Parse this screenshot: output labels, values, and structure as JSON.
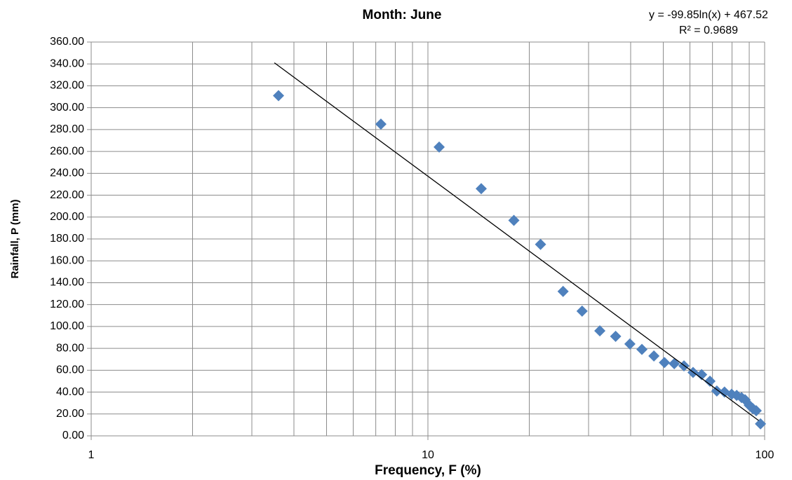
{
  "chart_data": {
    "type": "scatter",
    "title": "Month: June",
    "annotations": [
      "y = -99.85ln(x) + 467.52",
      "R² = 0.9689"
    ],
    "xlabel": "Frequency, F (%)",
    "ylabel": "Rainfall, P (mm)",
    "xscale": "log",
    "xlim": [
      1,
      100
    ],
    "xticks": [
      1,
      10,
      100
    ],
    "xminorticks": [
      2,
      3,
      4,
      5,
      6,
      7,
      8,
      9,
      20,
      30,
      40,
      50,
      60,
      70,
      80,
      90
    ],
    "ylim": [
      0,
      360
    ],
    "yticks": [
      {
        "value": 0,
        "label": "0.00"
      },
      {
        "value": 20,
        "label": "20.00"
      },
      {
        "value": 40,
        "label": "40.00"
      },
      {
        "value": 60,
        "label": "60.00"
      },
      {
        "value": 80,
        "label": "80.00"
      },
      {
        "value": 100,
        "label": "100.00"
      },
      {
        "value": 120,
        "label": "120.00"
      },
      {
        "value": 140,
        "label": "140.00"
      },
      {
        "value": 160,
        "label": "160.00"
      },
      {
        "value": 180,
        "label": "180.00"
      },
      {
        "value": 200,
        "label": "200.00"
      },
      {
        "value": 220,
        "label": "220.00"
      },
      {
        "value": 240,
        "label": "240.00"
      },
      {
        "value": 260,
        "label": "260.00"
      },
      {
        "value": 280,
        "label": "280.00"
      },
      {
        "value": 300,
        "label": "300.00"
      },
      {
        "value": 320,
        "label": "320.00"
      },
      {
        "value": 340,
        "label": "340.00"
      },
      {
        "value": 360,
        "label": "360.00"
      }
    ],
    "grid": true,
    "color": "#4f81bd",
    "x": [
      3.6,
      7.25,
      10.8,
      14.4,
      18.0,
      21.6,
      25.2,
      28.7,
      32.4,
      36.1,
      39.8,
      43.2,
      46.9,
      50.4,
      53.9,
      57.6,
      61.3,
      65,
      68.8,
      72.1,
      76,
      79.8,
      82.6,
      85.4,
      87.5,
      90,
      92.2,
      94.4,
      97.2
    ],
    "values": [
      311,
      285,
      264,
      226,
      197,
      175,
      132,
      114,
      96,
      91,
      84,
      79,
      73,
      67,
      66,
      64,
      58,
      56,
      50,
      41,
      40,
      38,
      37,
      35,
      33,
      28,
      25,
      23,
      11
    ],
    "trendline": {
      "color": "#000000",
      "x": [
        3.5,
        96
      ],
      "values": [
        341,
        14
      ]
    }
  }
}
